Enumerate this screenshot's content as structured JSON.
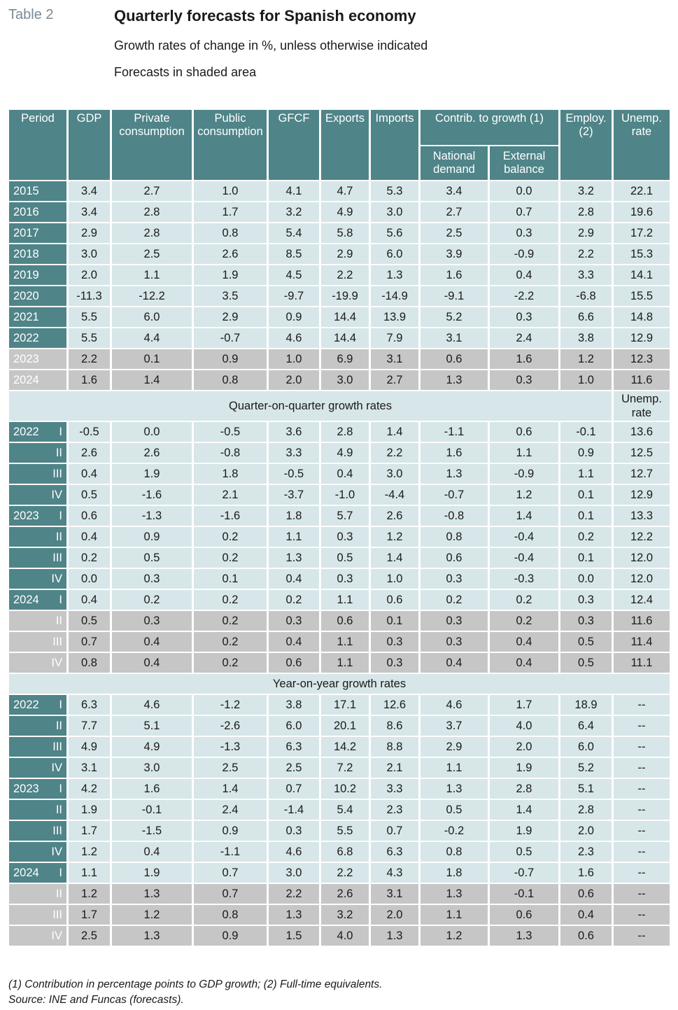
{
  "header": {
    "label": "Table 2",
    "title": "Quarterly forecasts for Spanish economy",
    "subtitle": "Growth rates of change in %, unless otherwise indicated",
    "note": "Forecasts in shaded area"
  },
  "columns": {
    "period": "Period",
    "gdp": "GDP",
    "private": "Private consumption",
    "public": "Public consumption",
    "gfcf": "GFCF",
    "exports": "Exports",
    "imports": "Imports",
    "contrib": "Contrib. to growth (1)",
    "national": "National demand",
    "external": "External balance",
    "employ": "Employ. (2)",
    "unemp": "Unemp. rate"
  },
  "sections": {
    "qoq": "Quarter-on-quarter growth rates",
    "qoq_unemp": "Unemp. rate",
    "yoy": "Year-on-year growth rates"
  },
  "annual": [
    {
      "label": "2015",
      "q": "",
      "forecast": false,
      "values": [
        "3.4",
        "2.7",
        "1.0",
        "4.1",
        "4.7",
        "5.3",
        "3.4",
        "0.0",
        "3.2",
        "22.1"
      ]
    },
    {
      "label": "2016",
      "q": "",
      "forecast": false,
      "values": [
        "3.4",
        "2.8",
        "1.7",
        "3.2",
        "4.9",
        "3.0",
        "2.7",
        "0.7",
        "2.8",
        "19.6"
      ]
    },
    {
      "label": "2017",
      "q": "",
      "forecast": false,
      "values": [
        "2.9",
        "2.8",
        "0.8",
        "5.4",
        "5.8",
        "5.6",
        "2.5",
        "0.3",
        "2.9",
        "17.2"
      ]
    },
    {
      "label": "2018",
      "q": "",
      "forecast": false,
      "values": [
        "3.0",
        "2.5",
        "2.6",
        "8.5",
        "2.9",
        "6.0",
        "3.9",
        "-0.9",
        "2.2",
        "15.3"
      ]
    },
    {
      "label": "2019",
      "q": "",
      "forecast": false,
      "values": [
        "2.0",
        "1.1",
        "1.9",
        "4.5",
        "2.2",
        "1.3",
        "1.6",
        "0.4",
        "3.3",
        "14.1"
      ]
    },
    {
      "label": "2020",
      "q": "",
      "forecast": false,
      "values": [
        "-11.3",
        "-12.2",
        "3.5",
        "-9.7",
        "-19.9",
        "-14.9",
        "-9.1",
        "-2.2",
        "-6.8",
        "15.5"
      ]
    },
    {
      "label": "2021",
      "q": "",
      "forecast": false,
      "values": [
        "5.5",
        "6.0",
        "2.9",
        "0.9",
        "14.4",
        "13.9",
        "5.2",
        "0.3",
        "6.6",
        "14.8"
      ]
    },
    {
      "label": "2022",
      "q": "",
      "forecast": false,
      "values": [
        "5.5",
        "4.4",
        "-0.7",
        "4.6",
        "14.4",
        "7.9",
        "3.1",
        "2.4",
        "3.8",
        "12.9"
      ]
    },
    {
      "label": "2023",
      "q": "",
      "forecast": true,
      "values": [
        "2.2",
        "0.1",
        "0.9",
        "1.0",
        "6.9",
        "3.1",
        "0.6",
        "1.6",
        "1.2",
        "12.3"
      ]
    },
    {
      "label": "2024",
      "q": "",
      "forecast": true,
      "values": [
        "1.6",
        "1.4",
        "0.8",
        "2.0",
        "3.0",
        "2.7",
        "1.3",
        "0.3",
        "1.0",
        "11.6"
      ]
    }
  ],
  "qoq": [
    {
      "label": "2022",
      "q": "I",
      "forecast": false,
      "values": [
        "-0.5",
        "0.0",
        "-0.5",
        "3.6",
        "2.8",
        "1.4",
        "-1.1",
        "0.6",
        "-0.1",
        "13.6"
      ]
    },
    {
      "label": "",
      "q": "II",
      "forecast": false,
      "values": [
        "2.6",
        "2.6",
        "-0.8",
        "3.3",
        "4.9",
        "2.2",
        "1.6",
        "1.1",
        "0.9",
        "12.5"
      ]
    },
    {
      "label": "",
      "q": "III",
      "forecast": false,
      "values": [
        "0.4",
        "1.9",
        "1.8",
        "-0.5",
        "0.4",
        "3.0",
        "1.3",
        "-0.9",
        "1.1",
        "12.7"
      ]
    },
    {
      "label": "",
      "q": "IV",
      "forecast": false,
      "values": [
        "0.5",
        "-1.6",
        "2.1",
        "-3.7",
        "-1.0",
        "-4.4",
        "-0.7",
        "1.2",
        "0.1",
        "12.9"
      ]
    },
    {
      "label": "2023",
      "q": "I",
      "forecast": false,
      "values": [
        "0.6",
        "-1.3",
        "-1.6",
        "1.8",
        "5.7",
        "2.6",
        "-0.8",
        "1.4",
        "0.1",
        "13.3"
      ]
    },
    {
      "label": "",
      "q": "II",
      "forecast": false,
      "values": [
        "0.4",
        "0.9",
        "0.2",
        "1.1",
        "0.3",
        "1.2",
        "0.8",
        "-0.4",
        "0.2",
        "12.2"
      ]
    },
    {
      "label": "",
      "q": "III",
      "forecast": false,
      "values": [
        "0.2",
        "0.5",
        "0.2",
        "1.3",
        "0.5",
        "1.4",
        "0.6",
        "-0.4",
        "0.1",
        "12.0"
      ]
    },
    {
      "label": "",
      "q": "IV",
      "forecast": false,
      "values": [
        "0.0",
        "0.3",
        "0.1",
        "0.4",
        "0.3",
        "1.0",
        "0.3",
        "-0.3",
        "0.0",
        "12.0"
      ]
    },
    {
      "label": "2024",
      "q": "I",
      "forecast": false,
      "values": [
        "0.4",
        "0.2",
        "0.2",
        "0.2",
        "1.1",
        "0.6",
        "0.2",
        "0.2",
        "0.3",
        "12.4"
      ]
    },
    {
      "label": "",
      "q": "II",
      "forecast": true,
      "values": [
        "0.5",
        "0.3",
        "0.2",
        "0.3",
        "0.6",
        "0.1",
        "0.3",
        "0.2",
        "0.3",
        "11.6"
      ]
    },
    {
      "label": "",
      "q": "III",
      "forecast": true,
      "values": [
        "0.7",
        "0.4",
        "0.2",
        "0.4",
        "1.1",
        "0.3",
        "0.3",
        "0.4",
        "0.5",
        "11.4"
      ]
    },
    {
      "label": "",
      "q": "IV",
      "forecast": true,
      "values": [
        "0.8",
        "0.4",
        "0.2",
        "0.6",
        "1.1",
        "0.3",
        "0.4",
        "0.4",
        "0.5",
        "11.1"
      ]
    }
  ],
  "yoy": [
    {
      "label": "2022",
      "q": "I",
      "forecast": false,
      "values": [
        "6.3",
        "4.6",
        "-1.2",
        "3.8",
        "17.1",
        "12.6",
        "4.6",
        "1.7",
        "18.9",
        "--"
      ]
    },
    {
      "label": "",
      "q": "II",
      "forecast": false,
      "values": [
        "7.7",
        "5.1",
        "-2.6",
        "6.0",
        "20.1",
        "8.6",
        "3.7",
        "4.0",
        "6.4",
        "--"
      ]
    },
    {
      "label": "",
      "q": "III",
      "forecast": false,
      "values": [
        "4.9",
        "4.9",
        "-1.3",
        "6.3",
        "14.2",
        "8.8",
        "2.9",
        "2.0",
        "6.0",
        "--"
      ]
    },
    {
      "label": "",
      "q": "IV",
      "forecast": false,
      "values": [
        "3.1",
        "3.0",
        "2.5",
        "2.5",
        "7.2",
        "2.1",
        "1.1",
        "1.9",
        "5.2",
        "--"
      ]
    },
    {
      "label": "2023",
      "q": "I",
      "forecast": false,
      "values": [
        "4.2",
        "1.6",
        "1.4",
        "0.7",
        "10.2",
        "3.3",
        "1.3",
        "2.8",
        "5.1",
        "--"
      ]
    },
    {
      "label": "",
      "q": "II",
      "forecast": false,
      "values": [
        "1.9",
        "-0.1",
        "2.4",
        "-1.4",
        "5.4",
        "2.3",
        "0.5",
        "1.4",
        "2.8",
        "--"
      ]
    },
    {
      "label": "",
      "q": "III",
      "forecast": false,
      "values": [
        "1.7",
        "-1.5",
        "0.9",
        "0.3",
        "5.5",
        "0.7",
        "-0.2",
        "1.9",
        "2.0",
        "--"
      ]
    },
    {
      "label": "",
      "q": "IV",
      "forecast": false,
      "values": [
        "1.2",
        "0.4",
        "-1.1",
        "4.6",
        "6.8",
        "6.3",
        "0.8",
        "0.5",
        "2.3",
        "--"
      ]
    },
    {
      "label": "2024",
      "q": "I",
      "forecast": false,
      "values": [
        "1.1",
        "1.9",
        "0.7",
        "3.0",
        "2.2",
        "4.3",
        "1.8",
        "-0.7",
        "1.6",
        "--"
      ]
    },
    {
      "label": "",
      "q": "II",
      "forecast": true,
      "values": [
        "1.2",
        "1.3",
        "0.7",
        "2.2",
        "2.6",
        "3.1",
        "1.3",
        "-0.1",
        "0.6",
        "--"
      ]
    },
    {
      "label": "",
      "q": "III",
      "forecast": true,
      "values": [
        "1.7",
        "1.2",
        "0.8",
        "1.3",
        "3.2",
        "2.0",
        "1.1",
        "0.6",
        "0.4",
        "--"
      ]
    },
    {
      "label": "",
      "q": "IV",
      "forecast": true,
      "values": [
        "2.5",
        "1.3",
        "0.9",
        "1.5",
        "4.0",
        "1.3",
        "1.2",
        "1.3",
        "0.6",
        "--"
      ]
    }
  ],
  "footnotes": {
    "notes": "(1) Contribution in percentage points to GDP growth; (2) Full-time equivalents.",
    "source": "Source: INE and Funcas (forecasts)."
  }
}
